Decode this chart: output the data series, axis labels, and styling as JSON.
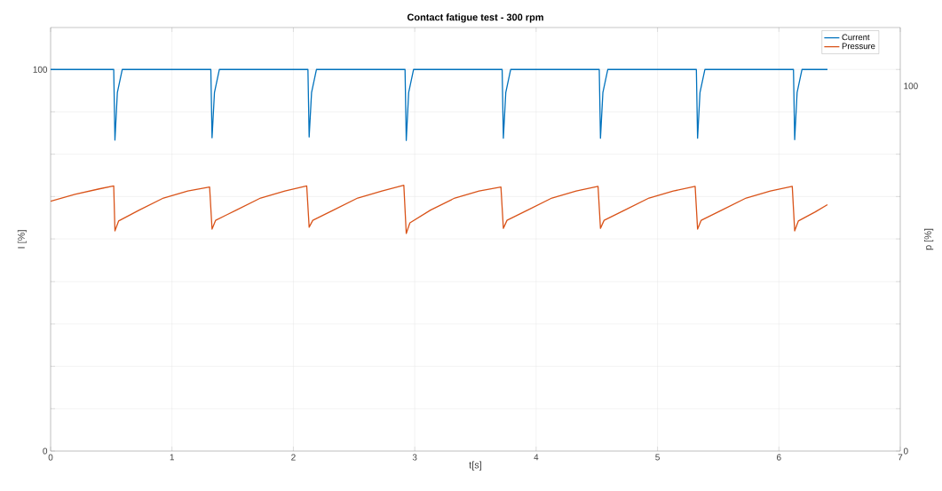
{
  "chart_data": {
    "type": "line",
    "title": "Contact fatigue test - 300 rpm",
    "xlabel": "t[s]",
    "ylabel": "I [%]",
    "y2label": "p [%]",
    "xlim": [
      0,
      7
    ],
    "xticks": [
      0,
      1,
      2,
      3,
      4,
      5,
      6,
      7
    ],
    "ylim": [
      0,
      111
    ],
    "yticks": [
      0,
      {
        "value": 11.1,
        "label": null
      },
      {
        "value": 22.2,
        "label": null
      },
      {
        "value": 33.3,
        "label": null
      },
      {
        "value": 44.4,
        "label": null
      },
      {
        "value": 55.6,
        "label": null
      },
      {
        "value": 66.7,
        "label": null
      },
      {
        "value": 77.8,
        "label": null
      },
      {
        "value": 88.9,
        "label": null
      },
      100
    ],
    "y2lim": [
      0,
      116
    ],
    "y2ticks": [
      0,
      100
    ],
    "grid": true,
    "legend": "top right",
    "series": [
      {
        "name": "Current",
        "color": "#0072bd",
        "x": [
          0,
          0.52,
          0.53,
          0.55,
          0.59,
          1.32,
          1.33,
          1.35,
          1.39,
          2.12,
          2.13,
          2.15,
          2.19,
          2.92,
          2.93,
          2.95,
          2.99,
          3.72,
          3.73,
          3.75,
          3.79,
          4.52,
          4.53,
          4.55,
          4.59,
          5.32,
          5.33,
          5.35,
          5.39,
          6.12,
          6.13,
          6.15,
          6.19,
          6.4
        ],
        "values": [
          100,
          100,
          81.5,
          94,
          100,
          100,
          82.1,
          94,
          100,
          100,
          82.3,
          94,
          100,
          100,
          81.4,
          94,
          100,
          100,
          82,
          94,
          100,
          100,
          82,
          94,
          100,
          100,
          82,
          94,
          100,
          100,
          81.6,
          94,
          100,
          100
        ]
      },
      {
        "name": "Pressure",
        "color": "#d95319",
        "axis": "y2",
        "x": [
          0,
          0.2,
          0.4,
          0.52,
          0.53,
          0.56,
          0.73,
          0.93,
          1.13,
          1.31,
          1.33,
          1.36,
          1.53,
          1.73,
          1.93,
          2.11,
          2.13,
          2.16,
          2.33,
          2.53,
          2.73,
          2.91,
          2.93,
          2.96,
          3.13,
          3.33,
          3.53,
          3.71,
          3.73,
          3.76,
          3.93,
          4.13,
          4.33,
          4.51,
          4.53,
          4.56,
          4.73,
          4.93,
          5.13,
          5.31,
          5.33,
          5.36,
          5.53,
          5.73,
          5.93,
          6.11,
          6.13,
          6.16,
          6.3,
          6.4
        ],
        "values": [
          68.4,
          70.3,
          71.8,
          72.6,
          60.3,
          63,
          66,
          69.3,
          71.2,
          72.3,
          60.8,
          63.2,
          66,
          69.3,
          71.2,
          72.6,
          61.3,
          63.2,
          66,
          69.3,
          71.2,
          72.8,
          59.6,
          62.5,
          66,
          69.3,
          71.2,
          72.3,
          61,
          63.2,
          66,
          69.3,
          71.2,
          72.5,
          61,
          63.2,
          66,
          69.3,
          71.2,
          72.5,
          60.8,
          63.2,
          66,
          69.3,
          71.2,
          72.5,
          60.3,
          63,
          65.5,
          67.5
        ]
      }
    ]
  }
}
